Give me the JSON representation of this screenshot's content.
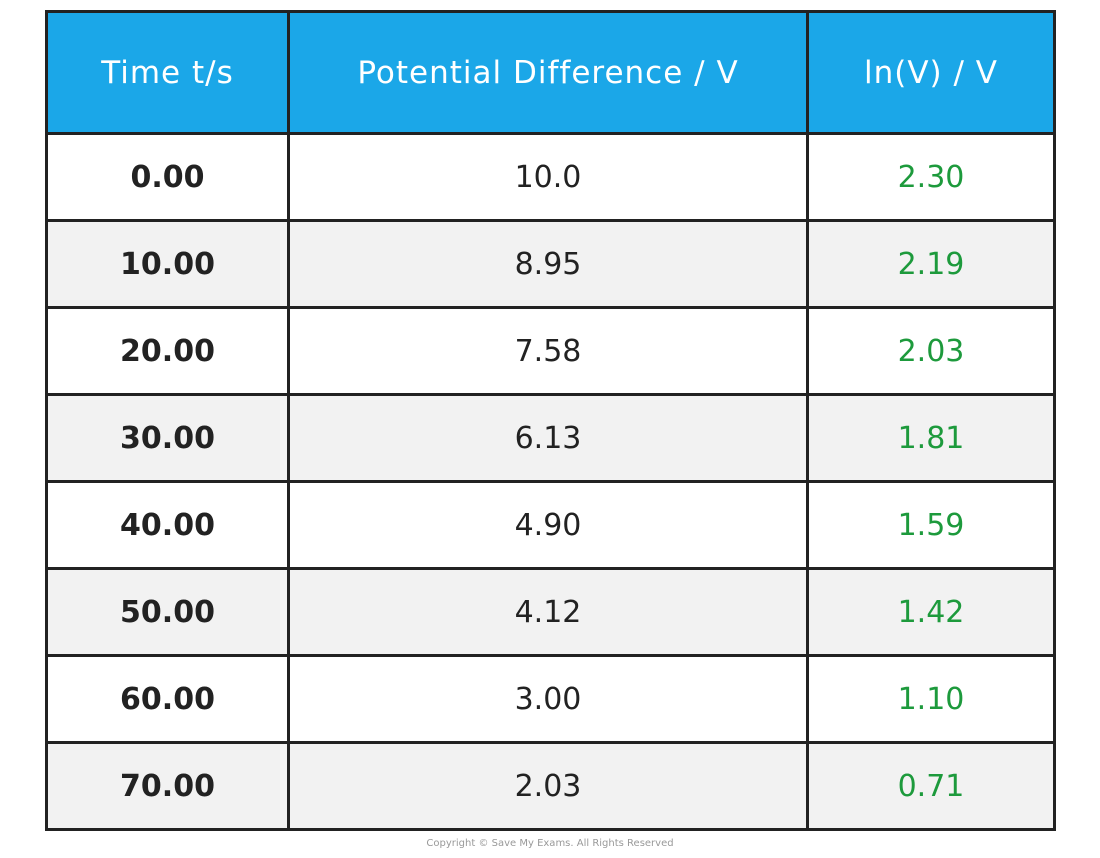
{
  "table": {
    "headers": [
      "Time t/s",
      "Potential Difference / V",
      "ln(V) / V"
    ],
    "rows": [
      [
        "0.00",
        "10.0",
        "2.30"
      ],
      [
        "10.00",
        "8.95",
        "2.19"
      ],
      [
        "20.00",
        "7.58",
        "2.03"
      ],
      [
        "30.00",
        "6.13",
        "1.81"
      ],
      [
        "40.00",
        "4.90",
        "1.59"
      ],
      [
        "50.00",
        "4.12",
        "1.42"
      ],
      [
        "60.00",
        "3.00",
        "1.10"
      ],
      [
        "70.00",
        "2.03",
        "0.71"
      ]
    ]
  },
  "footer": {
    "copyright": "Copyright © Save My Exams. All Rights Reserved"
  }
}
